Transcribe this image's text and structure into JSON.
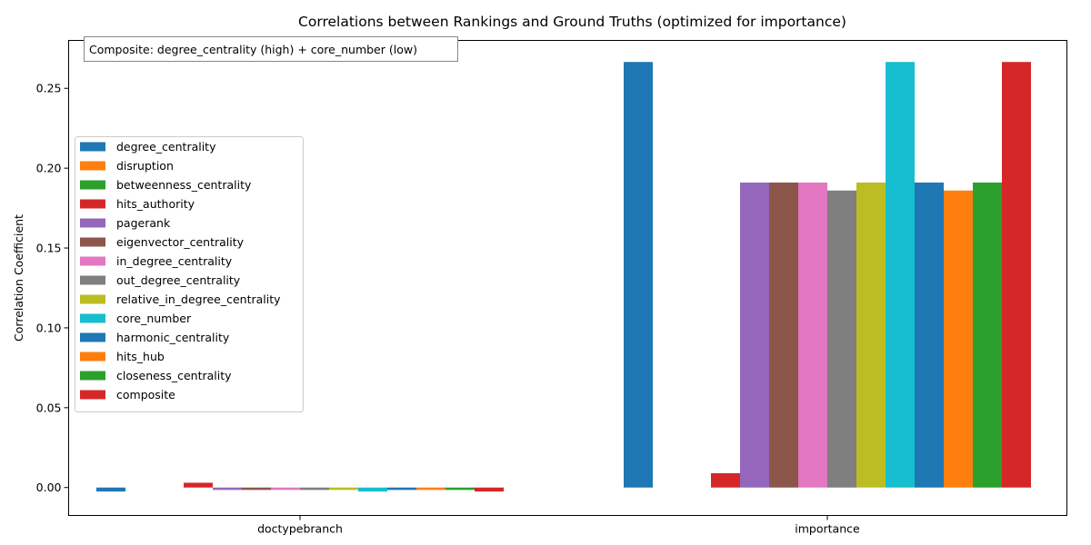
{
  "chart_data": {
    "type": "bar",
    "title": "Correlations between Rankings and Ground Truths (optimized for importance)",
    "xlabel": "",
    "ylabel": "Correlation Coefficient",
    "categories": [
      "doctypebranch",
      "importance"
    ],
    "ylim": [
      -0.0175,
      0.28
    ],
    "yticks": [
      "0.00",
      "0.05",
      "0.10",
      "0.15",
      "0.20",
      "0.25"
    ],
    "ytick_values": [
      0,
      0.05,
      0.1,
      0.15,
      0.2,
      0.25
    ],
    "grid": false,
    "legend_position": "center-left",
    "annotation": "Composite: degree_centrality (high) + core_number (low)",
    "series": [
      {
        "name": "degree_centrality",
        "color": "#1f77b4",
        "values": [
          -0.0025,
          0.2665
        ]
      },
      {
        "name": "disruption",
        "color": "#ff7f0e",
        "values": [
          0,
          0
        ]
      },
      {
        "name": "betweenness_centrality",
        "color": "#2ca02c",
        "values": [
          0,
          0
        ]
      },
      {
        "name": "hits_authority",
        "color": "#d62728",
        "values": [
          0.003,
          0.009
        ]
      },
      {
        "name": "pagerank",
        "color": "#9467bd",
        "values": [
          -0.0015,
          0.191
        ]
      },
      {
        "name": "eigenvector_centrality",
        "color": "#8c564b",
        "values": [
          -0.0015,
          0.191
        ]
      },
      {
        "name": "in_degree_centrality",
        "color": "#e377c2",
        "values": [
          -0.0015,
          0.191
        ]
      },
      {
        "name": "out_degree_centrality",
        "color": "#7f7f7f",
        "values": [
          -0.0015,
          0.186
        ]
      },
      {
        "name": "relative_in_degree_centrality",
        "color": "#bcbd22",
        "values": [
          -0.0015,
          0.191
        ]
      },
      {
        "name": "core_number",
        "color": "#17becf",
        "values": [
          -0.0025,
          0.2665
        ]
      },
      {
        "name": "harmonic_centrality",
        "color": "#1f77b4",
        "values": [
          -0.0015,
          0.191
        ]
      },
      {
        "name": "hits_hub",
        "color": "#ff7f0e",
        "values": [
          -0.0015,
          0.186
        ]
      },
      {
        "name": "closeness_centrality",
        "color": "#2ca02c",
        "values": [
          -0.0015,
          0.191
        ]
      },
      {
        "name": "composite",
        "color": "#d62728",
        "values": [
          -0.0025,
          0.2665
        ]
      }
    ]
  }
}
